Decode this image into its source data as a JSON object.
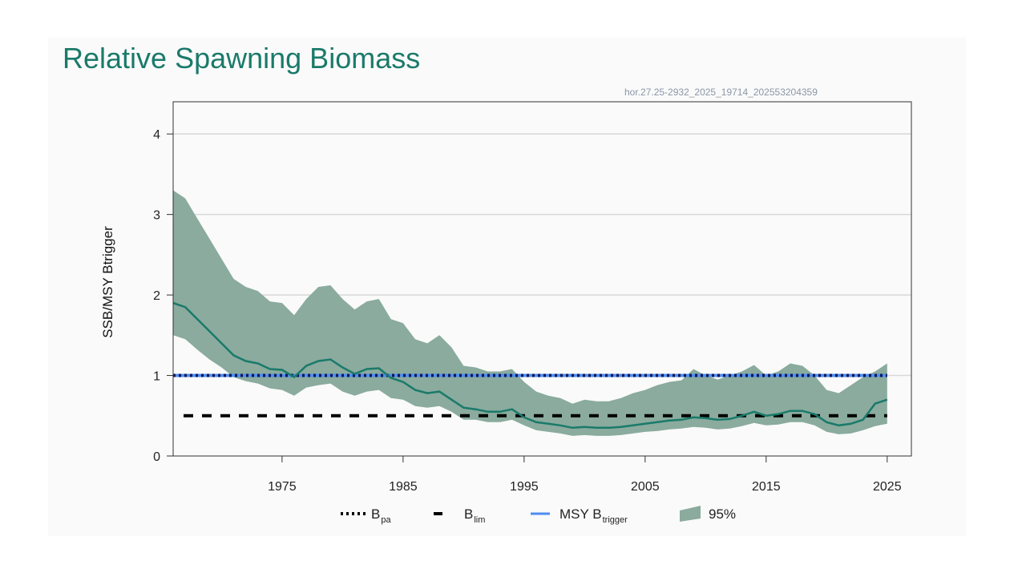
{
  "page": {
    "title": "Relative Spawning Biomass",
    "source_id": "hor.27.25-2932_2025_19714_202553204359"
  },
  "colors": {
    "title": "#1a7a6a",
    "line": "#1a7a6a",
    "band": "#8aab9e",
    "msy": "#4f8cf0",
    "bpa": "#0a1a5c",
    "blim": "#000000",
    "grid": "#d8d8d8"
  },
  "chart_data": {
    "type": "line",
    "title": "Relative Spawning Biomass",
    "xlabel": "",
    "ylabel": "SSB/MSY Btrigger",
    "xlim": [
      1966,
      2027
    ],
    "ylim": [
      0,
      4.4
    ],
    "xticks": [
      1975,
      1985,
      1995,
      2005,
      2015,
      2025
    ],
    "yticks": [
      0,
      1,
      2,
      3,
      4
    ],
    "grid": true,
    "legend_position": "bottom",
    "legend": [
      {
        "key": "bpa",
        "label": "B",
        "sub": "pa"
      },
      {
        "key": "blim",
        "label": "B",
        "sub": "lim"
      },
      {
        "key": "msy",
        "label": "MSY B",
        "sub": "trigger"
      },
      {
        "key": "band",
        "label": "95%",
        "sub": ""
      }
    ],
    "reference_lines": {
      "MSY_Btrigger": 1.0,
      "Bpa": 1.0,
      "Blim": 0.5
    },
    "x": [
      1966,
      1967,
      1968,
      1969,
      1970,
      1971,
      1972,
      1973,
      1974,
      1975,
      1976,
      1977,
      1978,
      1979,
      1980,
      1981,
      1982,
      1983,
      1984,
      1985,
      1986,
      1987,
      1988,
      1989,
      1990,
      1991,
      1992,
      1993,
      1994,
      1995,
      1996,
      1997,
      1998,
      1999,
      2000,
      2001,
      2002,
      2003,
      2004,
      2005,
      2006,
      2007,
      2008,
      2009,
      2010,
      2011,
      2012,
      2013,
      2014,
      2015,
      2016,
      2017,
      2018,
      2019,
      2020,
      2021,
      2022,
      2023,
      2024,
      2025
    ],
    "series": [
      {
        "name": "SSB/MSY Btrigger",
        "values": [
          1.9,
          1.85,
          1.7,
          1.55,
          1.4,
          1.25,
          1.18,
          1.15,
          1.08,
          1.07,
          0.98,
          1.12,
          1.18,
          1.2,
          1.1,
          1.02,
          1.08,
          1.09,
          0.97,
          0.92,
          0.82,
          0.78,
          0.8,
          0.7,
          0.6,
          0.58,
          0.55,
          0.55,
          0.58,
          0.48,
          0.42,
          0.4,
          0.38,
          0.35,
          0.36,
          0.35,
          0.35,
          0.36,
          0.38,
          0.4,
          0.42,
          0.44,
          0.45,
          0.48,
          0.47,
          0.45,
          0.46,
          0.5,
          0.55,
          0.5,
          0.52,
          0.56,
          0.56,
          0.52,
          0.42,
          0.38,
          0.4,
          0.45,
          0.65,
          0.7
        ]
      },
      {
        "name": "95% upper",
        "values": [
          3.3,
          3.2,
          2.95,
          2.7,
          2.45,
          2.2,
          2.1,
          2.05,
          1.92,
          1.9,
          1.75,
          1.95,
          2.1,
          2.12,
          1.95,
          1.82,
          1.92,
          1.95,
          1.7,
          1.65,
          1.45,
          1.4,
          1.5,
          1.35,
          1.12,
          1.1,
          1.05,
          1.05,
          1.08,
          0.92,
          0.8,
          0.75,
          0.72,
          0.65,
          0.7,
          0.68,
          0.68,
          0.72,
          0.78,
          0.82,
          0.88,
          0.92,
          0.94,
          1.08,
          1.0,
          0.95,
          1.0,
          1.05,
          1.13,
          1.0,
          1.05,
          1.15,
          1.12,
          1.0,
          0.82,
          0.78,
          0.88,
          0.98,
          1.05,
          1.15
        ]
      },
      {
        "name": "95% lower",
        "values": [
          1.5,
          1.45,
          1.32,
          1.2,
          1.1,
          0.98,
          0.93,
          0.9,
          0.84,
          0.82,
          0.75,
          0.85,
          0.88,
          0.9,
          0.8,
          0.75,
          0.8,
          0.82,
          0.72,
          0.7,
          0.62,
          0.6,
          0.62,
          0.55,
          0.45,
          0.45,
          0.42,
          0.42,
          0.45,
          0.38,
          0.32,
          0.3,
          0.28,
          0.25,
          0.26,
          0.25,
          0.25,
          0.26,
          0.28,
          0.3,
          0.31,
          0.33,
          0.34,
          0.36,
          0.35,
          0.33,
          0.34,
          0.37,
          0.41,
          0.38,
          0.39,
          0.42,
          0.42,
          0.38,
          0.3,
          0.27,
          0.28,
          0.32,
          0.37,
          0.4
        ]
      }
    ]
  }
}
